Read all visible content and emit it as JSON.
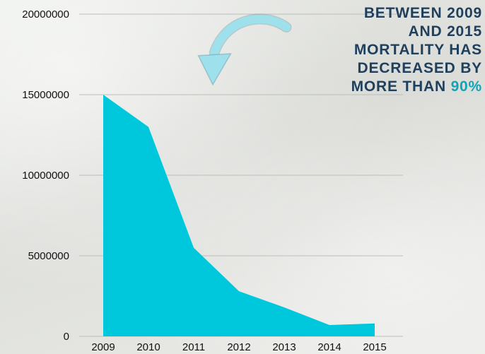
{
  "chart_data": {
    "type": "area",
    "x": [
      "2009",
      "2010",
      "2011",
      "2012",
      "2013",
      "2014",
      "2015"
    ],
    "values": [
      15000000,
      13000000,
      5500000,
      2800000,
      1800000,
      700000,
      800000
    ],
    "ylim": [
      0,
      20000000
    ],
    "yticks": [
      "0",
      "5000000",
      "10000000",
      "15000000",
      "20000000"
    ],
    "grid": true,
    "fill_color": "#00c8dc"
  },
  "callout": {
    "lines": [
      "BETWEEN 2009",
      "AND 2015",
      "MORTALITY HAS",
      "DECREASED BY"
    ],
    "last_line_prefix": "MORE THAN ",
    "highlight": "90%",
    "text_color": "#1f3f5c",
    "highlight_color": "#12a3b4"
  },
  "decoration": {
    "arrow_icon": "curved-arrow-icon",
    "arrow_color": "#8fd7e6"
  }
}
